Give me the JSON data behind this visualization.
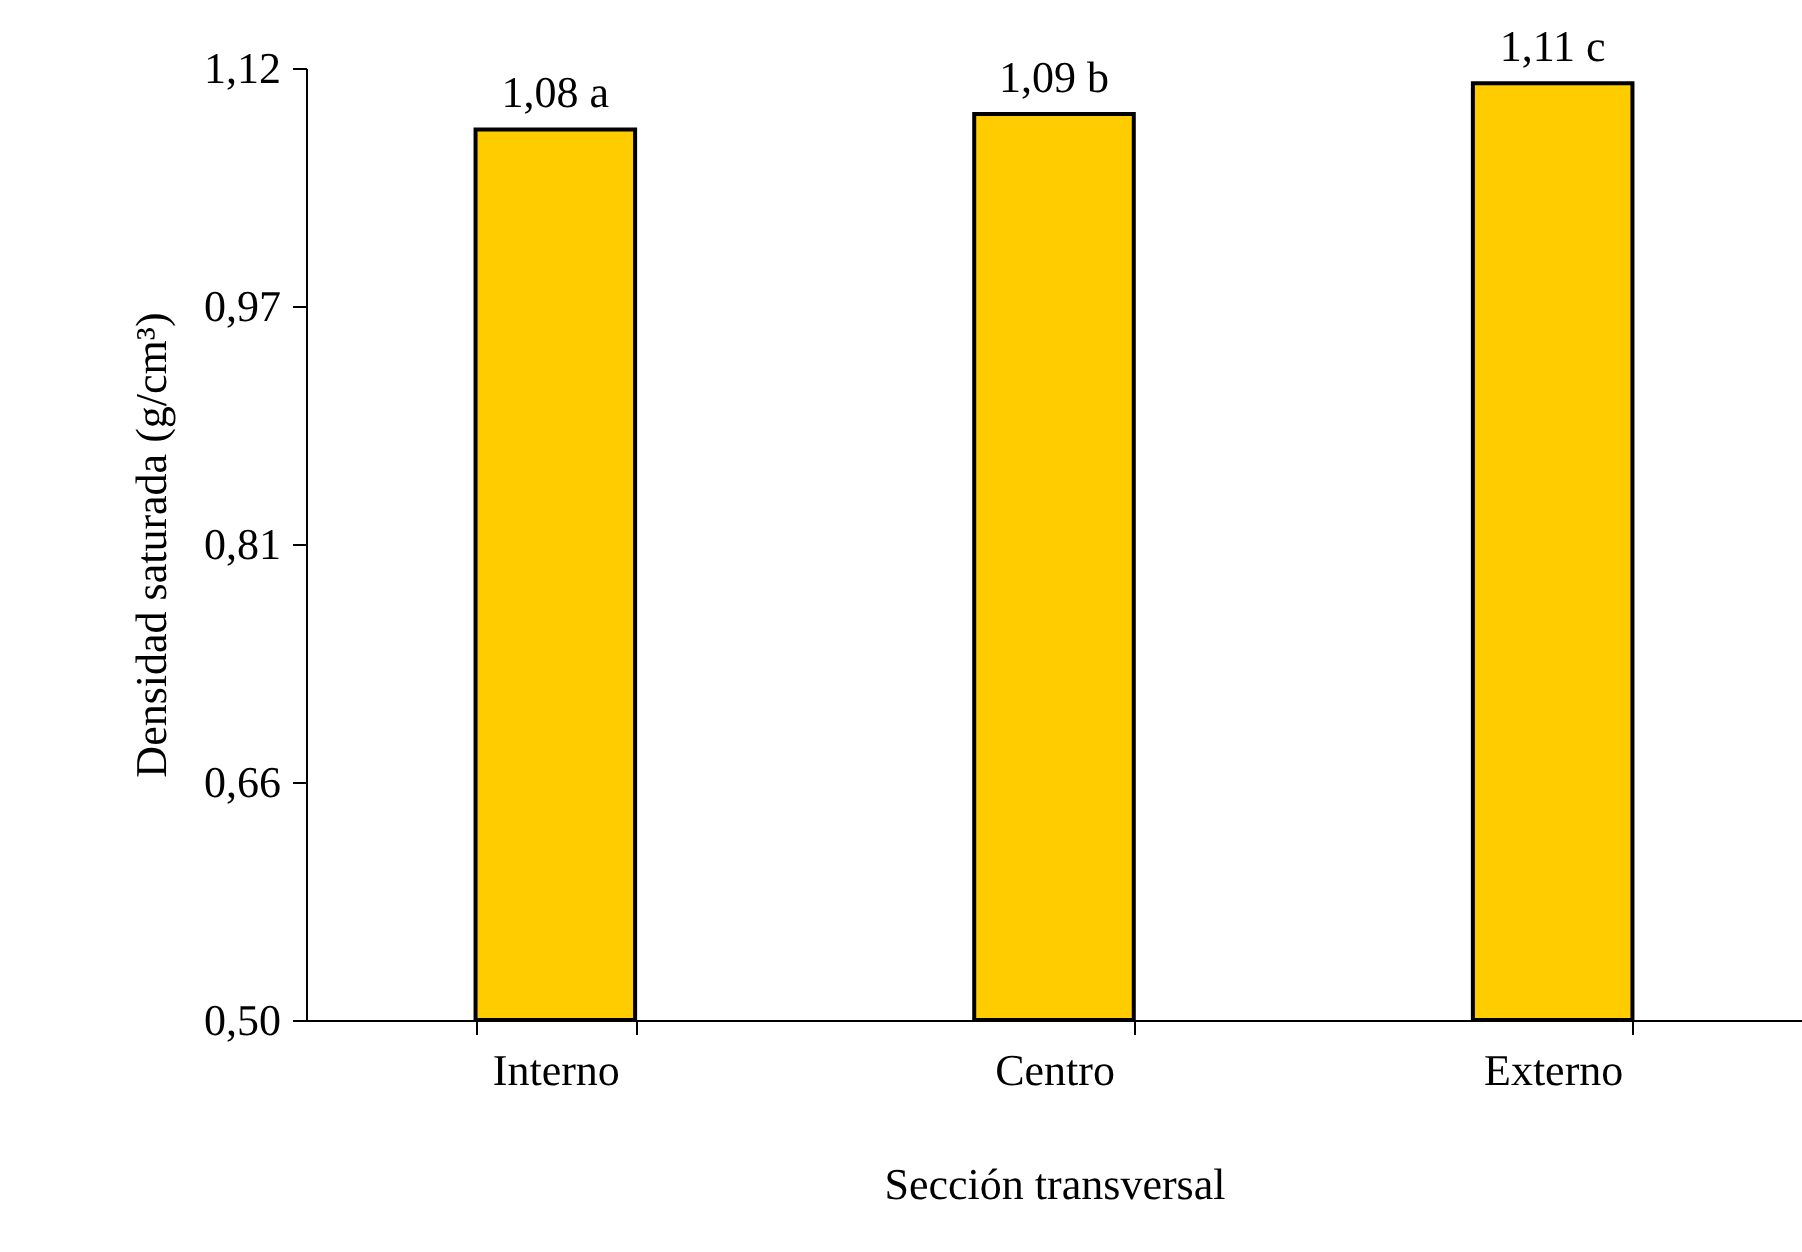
{
  "chart_data": {
    "type": "bar",
    "xlabel": "Sección transversal",
    "ylabel": "Densidad saturada (g/cm³)",
    "categories": [
      "Interno",
      "Centro",
      "Externo"
    ],
    "values": [
      1.08,
      1.09,
      1.11
    ],
    "value_labels": [
      "1,08 a",
      "1,09 b",
      "1,11 c"
    ],
    "color": "#ffcc00",
    "ylim": [
      0.5,
      1.12
    ],
    "yticks": [
      {
        "value": 0.5,
        "label": "0,50"
      },
      {
        "value": 0.655,
        "label": "0,66"
      },
      {
        "value": 0.81,
        "label": "0,81"
      },
      {
        "value": 0.965,
        "label": "0,97"
      },
      {
        "value": 1.12,
        "label": "1,12"
      }
    ],
    "grid": false
  }
}
